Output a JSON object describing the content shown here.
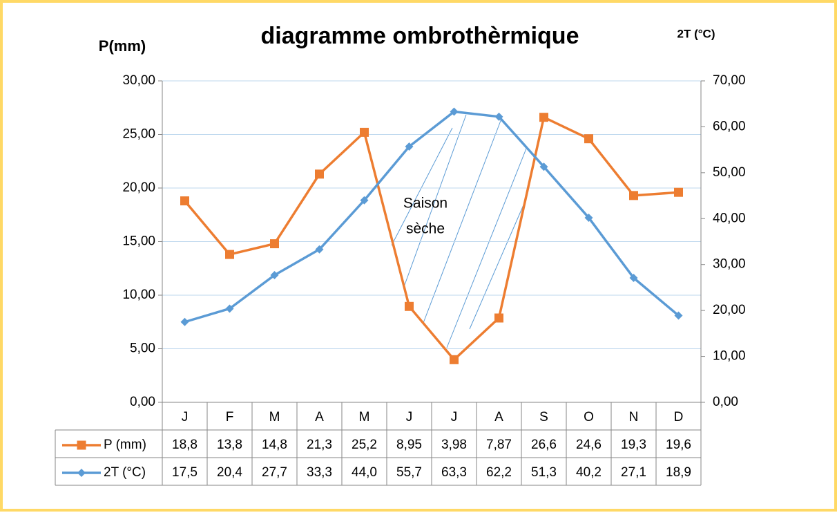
{
  "chart_data": {
    "type": "line",
    "title": "diagramme ombrothèrmique",
    "y_label": "P(mm)",
    "y2_label": "2T (°C)",
    "categories": [
      "J",
      "F",
      "M",
      "A",
      "M",
      "J",
      "J",
      "A",
      "S",
      "O",
      "N",
      "D"
    ],
    "series": [
      {
        "name": "P (mm)",
        "color": "#ed7d31",
        "marker": "square",
        "values": [
          18.8,
          13.8,
          14.8,
          21.3,
          25.2,
          8.95,
          3.98,
          7.87,
          26.6,
          24.6,
          19.3,
          19.6
        ],
        "value_labels": [
          "18,8",
          "13,8",
          "14,8",
          "21,3",
          "25,2",
          "8,95",
          "3,98",
          "7,87",
          "26,6",
          "24,6",
          "19,3",
          "19,6"
        ]
      },
      {
        "name": "2T (°C)",
        "color": "#5b9bd5",
        "marker": "diamond",
        "axis": "y2",
        "values": [
          17.5,
          20.4,
          27.7,
          33.3,
          44.0,
          55.7,
          63.3,
          62.2,
          51.3,
          40.2,
          27.1,
          18.9
        ],
        "value_labels": [
          "17,5",
          "20,4",
          "27,7",
          "33,3",
          "44,0",
          "55,7",
          "63,3",
          "62,2",
          "51,3",
          "40,2",
          "27,1",
          "18,9"
        ]
      }
    ],
    "ylim": [
      0,
      30
    ],
    "yticks": [
      {
        "value": 0,
        "label": "0,00"
      },
      {
        "value": 5,
        "label": "5,00"
      },
      {
        "value": 10,
        "label": "10,00"
      },
      {
        "value": 15,
        "label": "15,00"
      },
      {
        "value": 20,
        "label": "20,00"
      },
      {
        "value": 25,
        "label": "25,00"
      },
      {
        "value": 30,
        "label": "30,00"
      }
    ],
    "y2lim": [
      0,
      70
    ],
    "y2ticks": [
      {
        "value": 0,
        "label": "0,00"
      },
      {
        "value": 10,
        "label": "10,00"
      },
      {
        "value": 20,
        "label": "20,00"
      },
      {
        "value": 30,
        "label": "30,00"
      },
      {
        "value": 40,
        "label": "40,00"
      },
      {
        "value": 50,
        "label": "50,00"
      },
      {
        "value": 60,
        "label": "60,00"
      },
      {
        "value": 70,
        "label": "70,00"
      }
    ],
    "grid": true,
    "annotation": [
      "Saison",
      "sèche"
    ]
  }
}
